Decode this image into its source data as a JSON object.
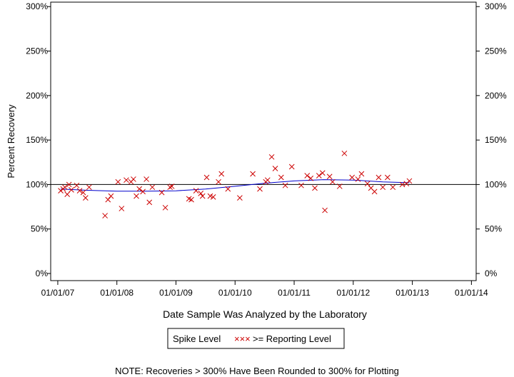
{
  "chart_data": {
    "type": "scatter",
    "ylabel": "Percent Recovery",
    "xlabel": "Date Sample Was Analyzed by the Laboratory",
    "ylim": [
      -8,
      305
    ],
    "xlim": [
      2006.88,
      2014.08
    ],
    "y_ticks": [
      0,
      50,
      100,
      150,
      200,
      250,
      300
    ],
    "y_tick_labels": [
      "0%",
      "50%",
      "100%",
      "150%",
      "200%",
      "250%",
      "300%"
    ],
    "x_ticks": [
      2007,
      2008,
      2009,
      2010,
      2011,
      2012,
      2013,
      2014
    ],
    "x_tick_labels": [
      "01/01/07",
      "01/01/08",
      "01/01/09",
      "01/01/10",
      "01/01/11",
      "01/01/12",
      "01/01/13",
      "01/01/14"
    ],
    "reference_line": 100,
    "legend": {
      "box_label": "Spike Level",
      "marker_glyph": "×××",
      "series_label": ">= Reporting Level"
    },
    "note": "NOTE: Recoveries > 300% Have Been Rounded to 300% for Plotting",
    "colors": {
      "points": "#cc0000",
      "trend": "#0000cc",
      "axes": "#000000"
    },
    "series": [
      {
        "name": ">= Reporting Level",
        "points": [
          [
            2007.05,
            93
          ],
          [
            2007.09,
            95
          ],
          [
            2007.12,
            97
          ],
          [
            2007.16,
            89
          ],
          [
            2007.19,
            100
          ],
          [
            2007.23,
            94
          ],
          [
            2007.32,
            99
          ],
          [
            2007.37,
            93
          ],
          [
            2007.43,
            91
          ],
          [
            2007.47,
            85
          ],
          [
            2007.53,
            97
          ],
          [
            2007.8,
            65
          ],
          [
            2007.85,
            83
          ],
          [
            2007.9,
            87
          ],
          [
            2008.02,
            103
          ],
          [
            2008.08,
            73
          ],
          [
            2008.16,
            105
          ],
          [
            2008.24,
            103
          ],
          [
            2008.28,
            106
          ],
          [
            2008.33,
            87
          ],
          [
            2008.38,
            95
          ],
          [
            2008.44,
            92
          ],
          [
            2008.5,
            106
          ],
          [
            2008.55,
            80
          ],
          [
            2008.6,
            97
          ],
          [
            2008.76,
            91
          ],
          [
            2008.82,
            74
          ],
          [
            2008.9,
            97
          ],
          [
            2008.93,
            98
          ],
          [
            2009.22,
            84
          ],
          [
            2009.26,
            83
          ],
          [
            2009.34,
            93
          ],
          [
            2009.42,
            90
          ],
          [
            2009.45,
            87
          ],
          [
            2009.52,
            108
          ],
          [
            2009.58,
            87
          ],
          [
            2009.63,
            86
          ],
          [
            2009.72,
            103
          ],
          [
            2009.77,
            112
          ],
          [
            2009.88,
            95
          ],
          [
            2010.08,
            85
          ],
          [
            2010.3,
            112
          ],
          [
            2010.42,
            95
          ],
          [
            2010.52,
            103
          ],
          [
            2010.55,
            105
          ],
          [
            2010.62,
            131
          ],
          [
            2010.68,
            118
          ],
          [
            2010.78,
            108
          ],
          [
            2010.85,
            99
          ],
          [
            2010.96,
            120
          ],
          [
            2011.12,
            99
          ],
          [
            2011.22,
            110
          ],
          [
            2011.28,
            107
          ],
          [
            2011.35,
            96
          ],
          [
            2011.42,
            110
          ],
          [
            2011.48,
            113
          ],
          [
            2011.52,
            71
          ],
          [
            2011.6,
            109
          ],
          [
            2011.65,
            103
          ],
          [
            2011.77,
            98
          ],
          [
            2011.85,
            135
          ],
          [
            2011.98,
            108
          ],
          [
            2012.08,
            106
          ],
          [
            2012.14,
            112
          ],
          [
            2012.24,
            101
          ],
          [
            2012.3,
            96
          ],
          [
            2012.36,
            92
          ],
          [
            2012.43,
            108
          ],
          [
            2012.5,
            97
          ],
          [
            2012.58,
            108
          ],
          [
            2012.67,
            97
          ],
          [
            2012.83,
            100
          ],
          [
            2012.9,
            101
          ],
          [
            2012.95,
            104
          ]
        ]
      },
      {
        "name": "trend",
        "points": [
          [
            2007.05,
            95
          ],
          [
            2007.5,
            93.5
          ],
          [
            2008.0,
            92.5
          ],
          [
            2008.5,
            92.5
          ],
          [
            2009.0,
            93
          ],
          [
            2009.5,
            95
          ],
          [
            2010.0,
            98
          ],
          [
            2010.5,
            101.5
          ],
          [
            2011.0,
            104
          ],
          [
            2011.5,
            105.5
          ],
          [
            2012.0,
            105
          ],
          [
            2012.5,
            103
          ],
          [
            2012.95,
            102
          ]
        ]
      }
    ]
  }
}
